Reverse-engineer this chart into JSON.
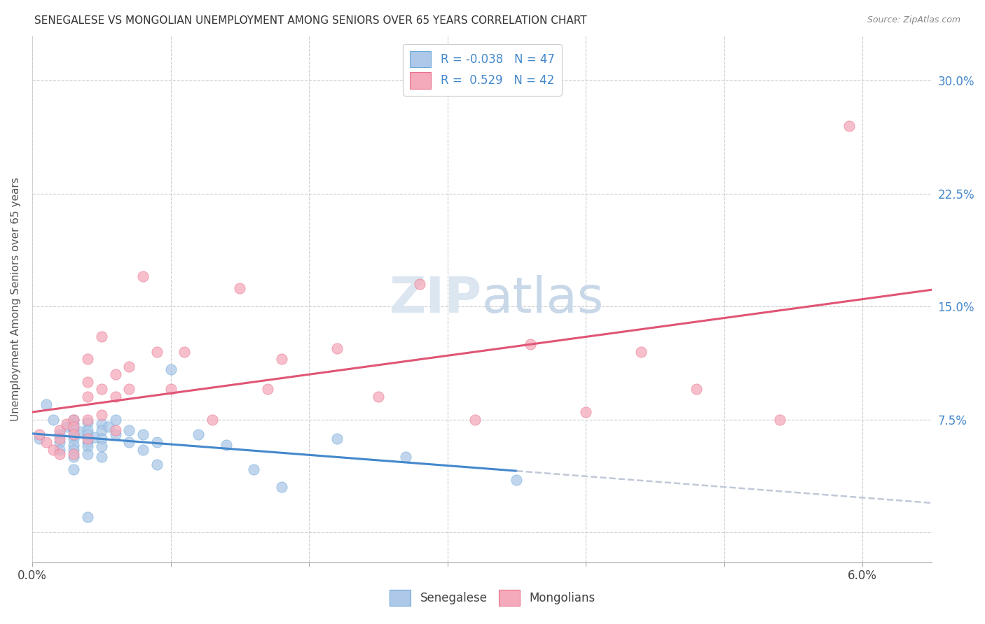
{
  "title": "SENEGALESE VS MONGOLIAN UNEMPLOYMENT AMONG SENIORS OVER 65 YEARS CORRELATION CHART",
  "source": "Source: ZipAtlas.com",
  "ylabel": "Unemployment Among Seniors over 65 years",
  "ytick_labels": [
    "30.0%",
    "22.5%",
    "15.0%",
    "7.5%",
    ""
  ],
  "ytick_vals": [
    0.3,
    0.225,
    0.15,
    0.075,
    0.0
  ],
  "xtick_vals": [
    0.0,
    0.01,
    0.02,
    0.03,
    0.04,
    0.05,
    0.06
  ],
  "xlim": [
    0.0,
    0.065
  ],
  "ylim": [
    -0.02,
    0.33
  ],
  "legend_r_senegalese": "-0.038",
  "legend_n_senegalese": "47",
  "legend_r_mongolian": "0.529",
  "legend_n_mongolian": "42",
  "senegalese_fill": "#adc8e8",
  "mongolian_fill": "#f5aabb",
  "senegalese_edge": "#6baad8",
  "mongolian_edge": "#e8708a",
  "senegalese_line": "#4488cc",
  "mongolian_line": "#e05575",
  "dash_line_color": "#c0c8d8",
  "watermark_color": "#dce6f0",
  "background_color": "#ffffff",
  "grid_color": "#cccccc",
  "senegalese_x": [
    0.0005,
    0.001,
    0.0015,
    0.002,
    0.002,
    0.002,
    0.0025,
    0.003,
    0.003,
    0.003,
    0.003,
    0.003,
    0.003,
    0.003,
    0.003,
    0.003,
    0.0035,
    0.004,
    0.004,
    0.004,
    0.004,
    0.004,
    0.004,
    0.004,
    0.0045,
    0.005,
    0.005,
    0.005,
    0.005,
    0.005,
    0.0055,
    0.006,
    0.006,
    0.007,
    0.007,
    0.008,
    0.008,
    0.009,
    0.009,
    0.01,
    0.012,
    0.014,
    0.016,
    0.018,
    0.022,
    0.027,
    0.035
  ],
  "senegalese_y": [
    0.062,
    0.085,
    0.075,
    0.065,
    0.06,
    0.055,
    0.07,
    0.075,
    0.072,
    0.068,
    0.065,
    0.062,
    0.058,
    0.055,
    0.05,
    0.042,
    0.067,
    0.073,
    0.068,
    0.065,
    0.06,
    0.057,
    0.052,
    0.01,
    0.063,
    0.072,
    0.068,
    0.062,
    0.057,
    0.05,
    0.07,
    0.075,
    0.065,
    0.068,
    0.06,
    0.065,
    0.055,
    0.06,
    0.045,
    0.108,
    0.065,
    0.058,
    0.042,
    0.03,
    0.062,
    0.05,
    0.035
  ],
  "mongolian_x": [
    0.0005,
    0.001,
    0.0015,
    0.002,
    0.002,
    0.002,
    0.0025,
    0.003,
    0.003,
    0.003,
    0.003,
    0.004,
    0.004,
    0.004,
    0.004,
    0.004,
    0.005,
    0.005,
    0.005,
    0.006,
    0.006,
    0.006,
    0.007,
    0.007,
    0.008,
    0.009,
    0.01,
    0.011,
    0.013,
    0.015,
    0.017,
    0.018,
    0.022,
    0.025,
    0.028,
    0.032,
    0.036,
    0.04,
    0.044,
    0.048,
    0.054,
    0.059
  ],
  "mongolian_y": [
    0.065,
    0.06,
    0.055,
    0.068,
    0.062,
    0.052,
    0.072,
    0.075,
    0.07,
    0.065,
    0.052,
    0.115,
    0.1,
    0.09,
    0.075,
    0.062,
    0.13,
    0.095,
    0.078,
    0.105,
    0.09,
    0.068,
    0.11,
    0.095,
    0.17,
    0.12,
    0.095,
    0.12,
    0.075,
    0.162,
    0.095,
    0.115,
    0.122,
    0.09,
    0.165,
    0.075,
    0.125,
    0.08,
    0.12,
    0.095,
    0.075,
    0.27
  ]
}
